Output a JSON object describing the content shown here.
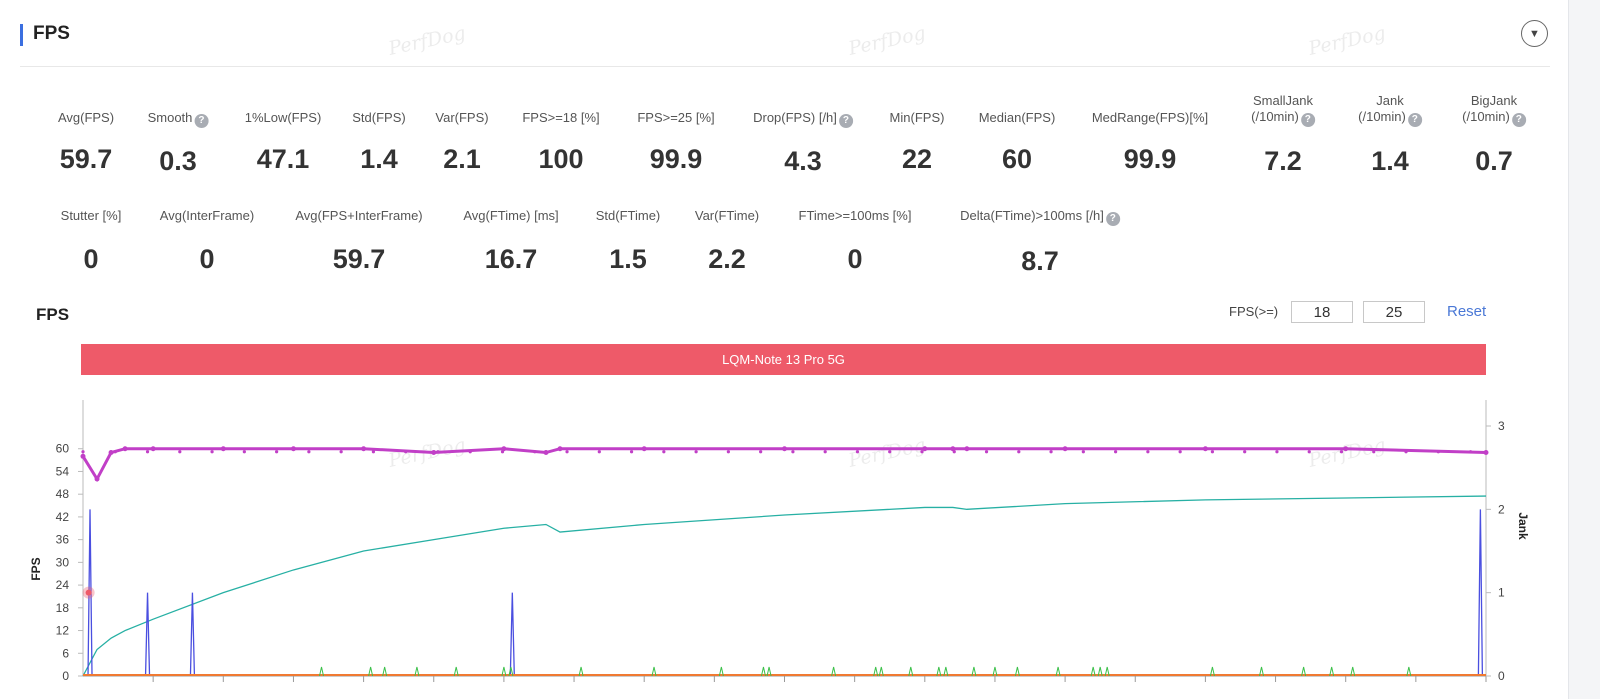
{
  "panel": {
    "title": "FPS",
    "watermark": "PerfDog"
  },
  "metrics_row1": [
    {
      "label": "Avg(FPS)",
      "value": "59.7",
      "help": false
    },
    {
      "label": "Smooth",
      "value": "0.3",
      "help": true
    },
    {
      "label": "1%Low(FPS)",
      "value": "47.1",
      "help": false
    },
    {
      "label": "Std(FPS)",
      "value": "1.4",
      "help": false
    },
    {
      "label": "Var(FPS)",
      "value": "2.1",
      "help": false
    },
    {
      "label": "FPS>=18 [%]",
      "value": "100",
      "help": false
    },
    {
      "label": "FPS>=25 [%]",
      "value": "99.9",
      "help": false
    },
    {
      "label": "Drop(FPS) [/h]",
      "value": "4.3",
      "help": true
    },
    {
      "label": "Min(FPS)",
      "value": "22",
      "help": false
    },
    {
      "label": "Median(FPS)",
      "value": "60",
      "help": false
    },
    {
      "label": "MedRange(FPS)[%]",
      "value": "99.9",
      "help": false
    },
    {
      "label": "SmallJank",
      "label2": "(/10min)",
      "value": "7.2",
      "help": true
    },
    {
      "label": "Jank",
      "label2": "(/10min)",
      "value": "1.4",
      "help": true
    },
    {
      "label": "BigJank",
      "label2": "(/10min)",
      "value": "0.7",
      "help": true
    }
  ],
  "metrics_row2": [
    {
      "label": "Stutter [%]",
      "value": "0",
      "help": false
    },
    {
      "label": "Avg(InterFrame)",
      "value": "0",
      "help": false
    },
    {
      "label": "Avg(FPS+InterFrame)",
      "value": "59.7",
      "help": false
    },
    {
      "label": "Avg(FTime) [ms]",
      "value": "16.7",
      "help": false
    },
    {
      "label": "Std(FTime)",
      "value": "1.5",
      "help": false
    },
    {
      "label": "Var(FTime)",
      "value": "2.2",
      "help": false
    },
    {
      "label": "FTime>=100ms [%]",
      "value": "0",
      "help": false
    },
    {
      "label": "Delta(FTime)>100ms [/h]",
      "value": "8.7",
      "help": true
    }
  ],
  "chart_controls": {
    "title": "FPS",
    "threshold_label": "FPS(>=)",
    "threshold_low": "18",
    "threshold_high": "25",
    "reset_label": "Reset"
  },
  "colors": {
    "accent": "#3b6fe0",
    "legend_bar": "#ee5a69",
    "fps_line": "#c13fc7",
    "trend_line": "#27b0a4",
    "jank_line": "#4a4fe0",
    "small_jank_line": "#3cc04a",
    "big_jank_line": "#f07a32"
  },
  "chart_data": {
    "type": "line",
    "legend": [
      "LQM-Note 13 Pro 5G"
    ],
    "ylabel": "FPS",
    "ylabel_right": "Jank",
    "yticks": [
      "0",
      "6",
      "12",
      "18",
      "24",
      "30",
      "36",
      "42",
      "48",
      "54",
      "60"
    ],
    "yticks_right": [
      "0",
      "1",
      "2",
      "3"
    ],
    "ylim": [
      0,
      66
    ],
    "ylim_right": [
      0,
      3
    ],
    "x": [
      0,
      1,
      2,
      3,
      5,
      10,
      15,
      20,
      25,
      30,
      33,
      34,
      40,
      50,
      60,
      62,
      63,
      70,
      80,
      90,
      100
    ],
    "series": [
      {
        "name": "FPS",
        "axis": "left",
        "values": [
          58,
          52,
          59,
          60,
          60,
          60,
          60,
          60,
          59,
          60,
          59,
          60,
          60,
          60,
          60,
          60,
          60,
          60,
          60,
          60,
          59
        ]
      },
      {
        "name": "",
        "axis": "left",
        "values": [
          0,
          7,
          10,
          12,
          15,
          22,
          28,
          33,
          36,
          39,
          40,
          38,
          40,
          42.5,
          44.5,
          44.5,
          44,
          45.5,
          46.5,
          47,
          47.5
        ]
      }
    ],
    "jank_spikes_right": [
      {
        "x": 0.5,
        "value": 2.0
      },
      {
        "x": 4.6,
        "value": 1.0
      },
      {
        "x": 7.8,
        "value": 1.0
      },
      {
        "x": 30.6,
        "value": 1.0
      },
      {
        "x": 99.6,
        "value": 2.0
      }
    ]
  }
}
